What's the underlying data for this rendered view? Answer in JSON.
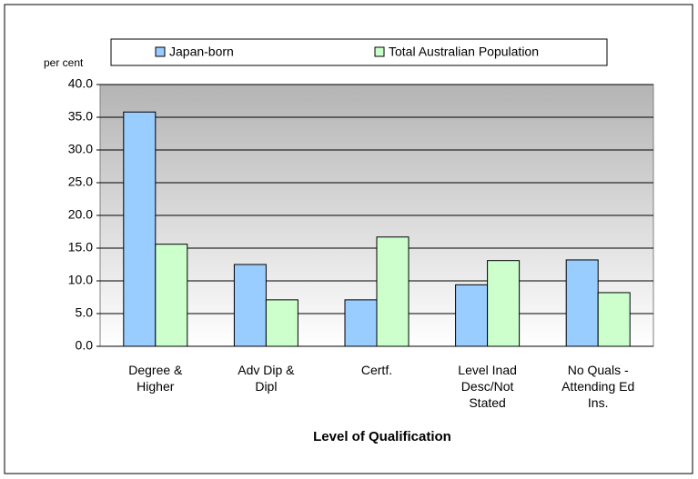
{
  "chart_data": {
    "type": "bar",
    "y_axis_label": "per cent",
    "x_axis_label": "Level of Qualification",
    "categories": [
      "Degree & Higher",
      "Adv Dip & Dipl",
      "Certf.",
      "Level Inad Desc/Not Stated",
      "No Quals - Attending Ed Ins."
    ],
    "series": [
      {
        "name": "Japan-born",
        "color": "#99ccff",
        "values": [
          35.8,
          12.5,
          7.1,
          9.4,
          13.2
        ]
      },
      {
        "name": "Total Australian Population",
        "color": "#ccffcc",
        "values": [
          15.6,
          7.1,
          16.7,
          13.1,
          8.2
        ]
      }
    ],
    "ylim": [
      0,
      40
    ],
    "yticks": [
      {
        "value": 0,
        "label": "0.0"
      },
      {
        "value": 5,
        "label": "5.0"
      },
      {
        "value": 10,
        "label": "10.0"
      },
      {
        "value": 15,
        "label": "15.0"
      },
      {
        "value": 20,
        "label": "20.0"
      },
      {
        "value": 25,
        "label": "25.0"
      },
      {
        "value": 30,
        "label": "30.0"
      },
      {
        "value": 35,
        "label": "35.0"
      },
      {
        "value": 40,
        "label": "40.0"
      }
    ],
    "grid": true,
    "legend": "top"
  }
}
